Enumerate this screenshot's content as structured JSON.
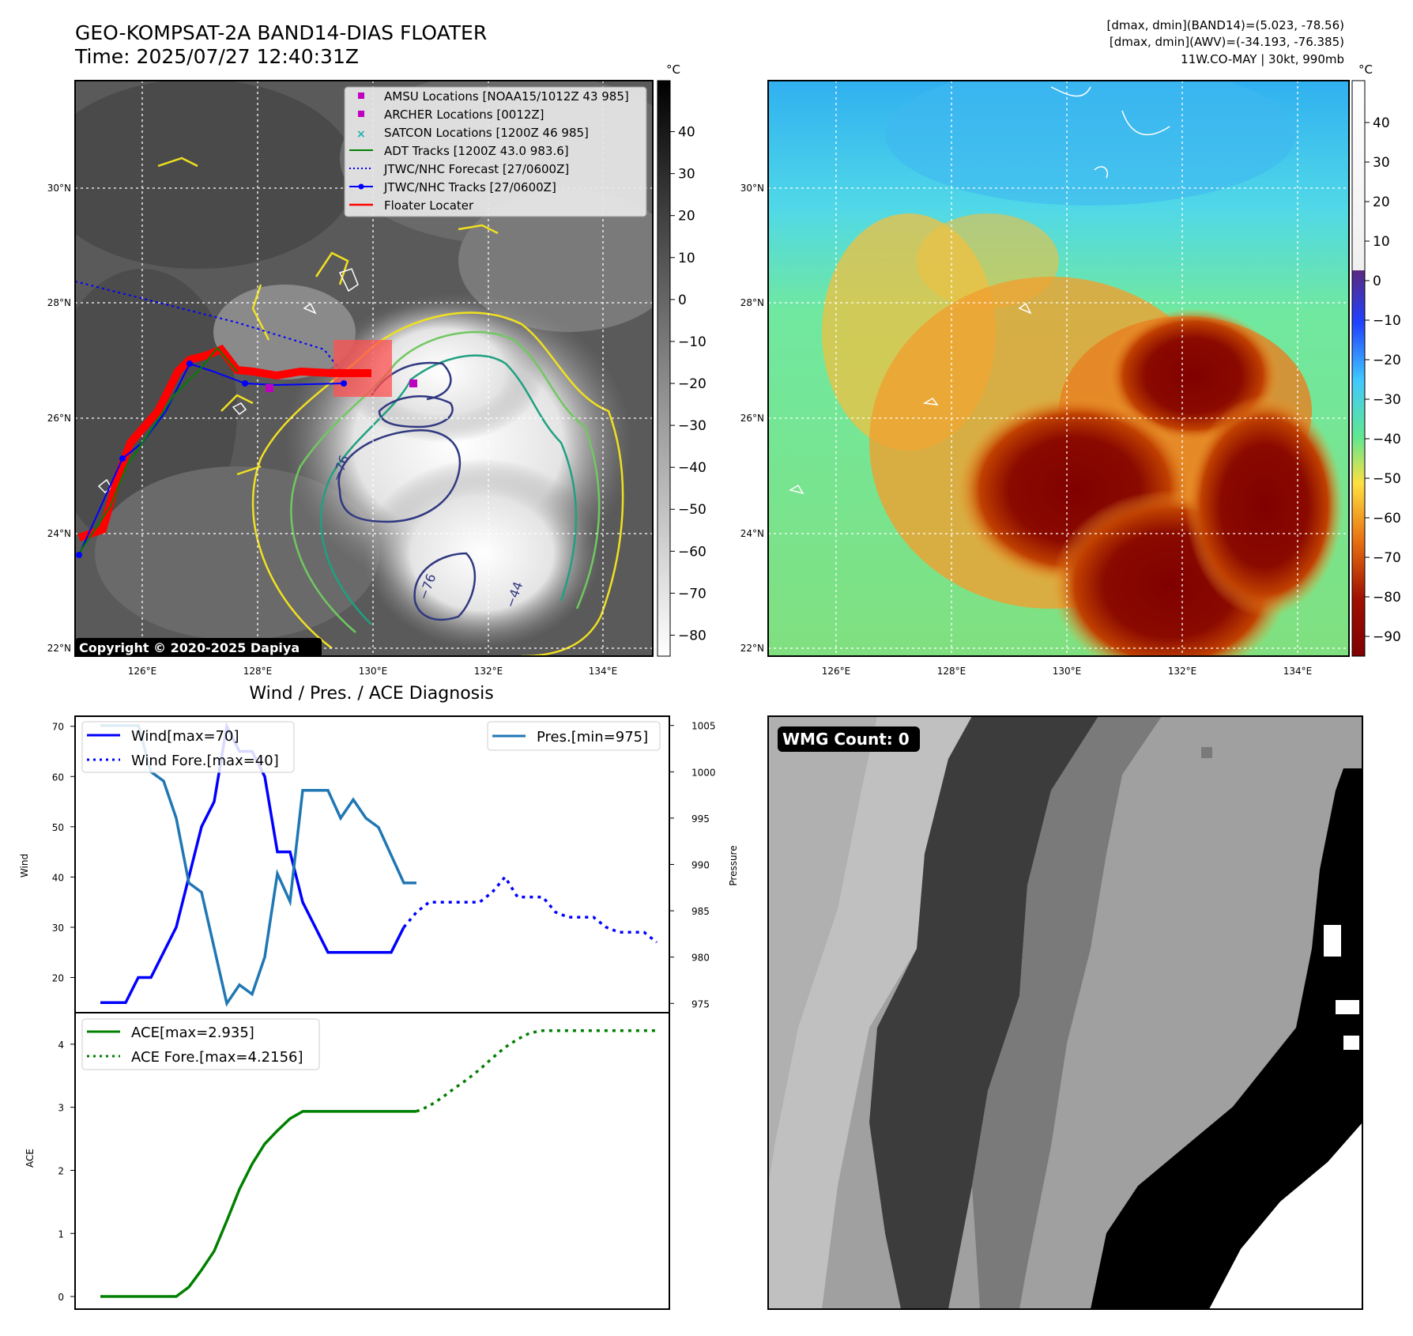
{
  "header": {
    "title_line1": "GEO-KOMPSAT-2A BAND14-DIAS FLOATER",
    "title_line2": "Time: 2025/07/27 12:40:31Z",
    "info_line1": "[dmax, dmin](BAND14)=(5.023, -78.56)",
    "info_line2": "[dmax, dmin](AWV)=(-34.193, -76.385)",
    "info_line3": "11W.CO-MAY | 30kt, 990mb"
  },
  "map_axes": {
    "lat_labels": [
      "30°N",
      "28°N",
      "26°N",
      "24°N",
      "22°N"
    ],
    "lon_labels": [
      "126°E",
      "128°E",
      "130°E",
      "132°E",
      "134°E"
    ]
  },
  "ir_panel": {
    "colorbar_unit": "°C",
    "colorbar_ticks": [
      "40",
      "30",
      "20",
      "10",
      "0",
      "−10",
      "−20",
      "−30",
      "−40",
      "−50",
      "−60",
      "−70",
      "−80"
    ],
    "copyright": "Copyright © 2020-2025 Dapiya",
    "contour_labels": [
      "−76",
      "−76",
      "−44",
      "−47"
    ],
    "legend": [
      {
        "label": "AMSU Locations [NOAA15/1012Z 43 985]",
        "color": "#c000c0",
        "marker": "square"
      },
      {
        "label": "ARCHER Locations [0012Z]",
        "color": "#c000c0",
        "marker": "square"
      },
      {
        "label": "SATCON Locations [1200Z 46 985]",
        "color": "#20b0b0",
        "marker": "x"
      },
      {
        "label": "ADT Tracks [1200Z 43.0 983.6]",
        "color": "#008000",
        "marker": "line"
      },
      {
        "label": "JTWC/NHC Forecast [27/0600Z]",
        "color": "#0000ff",
        "marker": "dotted"
      },
      {
        "label": "JTWC/NHC Tracks [27/0600Z]",
        "color": "#0000ff",
        "marker": "line-dot"
      },
      {
        "label": "Floater Locater",
        "color": "#ff0000",
        "marker": "line"
      }
    ]
  },
  "awv_panel": {
    "colorbar_unit": "°C",
    "colorbar_ticks": [
      "40",
      "30",
      "20",
      "10",
      "0",
      "−10",
      "−20",
      "−30",
      "−40",
      "−50",
      "−60",
      "−70",
      "−80",
      "−90"
    ]
  },
  "wmg_panel": {
    "badge": "WMG Count: 0"
  },
  "diag_title": "Wind / Pres. / ACE Diagnosis",
  "chart_data": [
    {
      "type": "line",
      "title": "Wind / Pres. / ACE Diagnosis",
      "ylabel": "Wind",
      "y2label": "Pressure",
      "ylim": [
        13,
        72
      ],
      "y2lim": [
        974,
        1006
      ],
      "yticks": [
        20,
        30,
        40,
        50,
        60,
        70
      ],
      "y2ticks": [
        975,
        980,
        985,
        990,
        995,
        1000,
        1005
      ],
      "xlim": [
        -2,
        45
      ],
      "series": [
        {
          "name": "Wind[max=70]",
          "color": "#0000ff",
          "style": "solid",
          "axis": "left",
          "x": [
            0,
            1,
            2,
            3,
            4,
            5,
            6,
            7,
            8,
            9,
            10,
            11,
            12,
            13,
            14,
            15,
            16,
            17,
            18,
            19,
            20,
            21,
            22,
            23,
            24
          ],
          "y": [
            15,
            15,
            15,
            20,
            20,
            25,
            30,
            40,
            50,
            55,
            70,
            65,
            65,
            60,
            45,
            45,
            35,
            30,
            25,
            25,
            25,
            25,
            25,
            25,
            30
          ]
        },
        {
          "name": "Wind Fore.[max=40]",
          "color": "#0000ff",
          "style": "dotted",
          "axis": "left",
          "x": [
            24,
            25,
            26,
            27,
            28,
            29,
            30,
            31,
            32,
            33,
            34,
            35,
            36,
            37,
            38,
            39,
            40,
            41,
            42,
            43,
            44
          ],
          "y": [
            30,
            33,
            35,
            35,
            35,
            35,
            35,
            37,
            40,
            36,
            36,
            36,
            33,
            32,
            32,
            32,
            30,
            29,
            29,
            29,
            27
          ]
        },
        {
          "name": "Pres.[min=975]",
          "color": "#1f77b4",
          "style": "solid",
          "axis": "right",
          "x": [
            0,
            1,
            2,
            3,
            4,
            5,
            6,
            7,
            8,
            9,
            10,
            11,
            12,
            13,
            14,
            15,
            16,
            17,
            18,
            19,
            20,
            21,
            22,
            23,
            24,
            25
          ],
          "y": [
            1005,
            1005,
            1005,
            1005,
            1000,
            999,
            995,
            988,
            987,
            981,
            975,
            977,
            976,
            980,
            989,
            986,
            998,
            998,
            998,
            995,
            997,
            995,
            994,
            991,
            988,
            988
          ]
        }
      ]
    },
    {
      "type": "line",
      "ylabel": "ACE",
      "ylim": [
        -0.2,
        4.5
      ],
      "yticks": [
        0,
        1,
        2,
        3,
        4
      ],
      "xlim": [
        -2,
        45
      ],
      "series": [
        {
          "name": "ACE[max=2.935]",
          "color": "#008000",
          "style": "solid",
          "x": [
            0,
            1,
            2,
            3,
            4,
            5,
            6,
            7,
            8,
            9,
            10,
            11,
            12,
            13,
            14,
            15,
            16,
            17,
            18,
            19,
            20,
            21,
            22,
            23,
            24,
            25
          ],
          "y": [
            0,
            0,
            0,
            0,
            0,
            0,
            0,
            0.15,
            0.42,
            0.72,
            1.2,
            1.7,
            2.1,
            2.42,
            2.63,
            2.82,
            2.935,
            2.935,
            2.935,
            2.935,
            2.935,
            2.935,
            2.935,
            2.935,
            2.935,
            2.935
          ]
        },
        {
          "name": "ACE Fore.[max=4.2156]",
          "color": "#008000",
          "style": "dotted",
          "x": [
            25,
            26,
            27,
            28,
            29,
            30,
            31,
            32,
            33,
            34,
            35,
            36,
            37,
            38,
            39,
            40,
            41,
            42,
            43,
            44
          ],
          "y": [
            2.935,
            3.02,
            3.15,
            3.3,
            3.44,
            3.6,
            3.78,
            3.95,
            4.08,
            4.18,
            4.2156,
            4.2156,
            4.2156,
            4.2156,
            4.2156,
            4.2156,
            4.2156,
            4.2156,
            4.2156,
            4.2156
          ]
        }
      ]
    }
  ]
}
